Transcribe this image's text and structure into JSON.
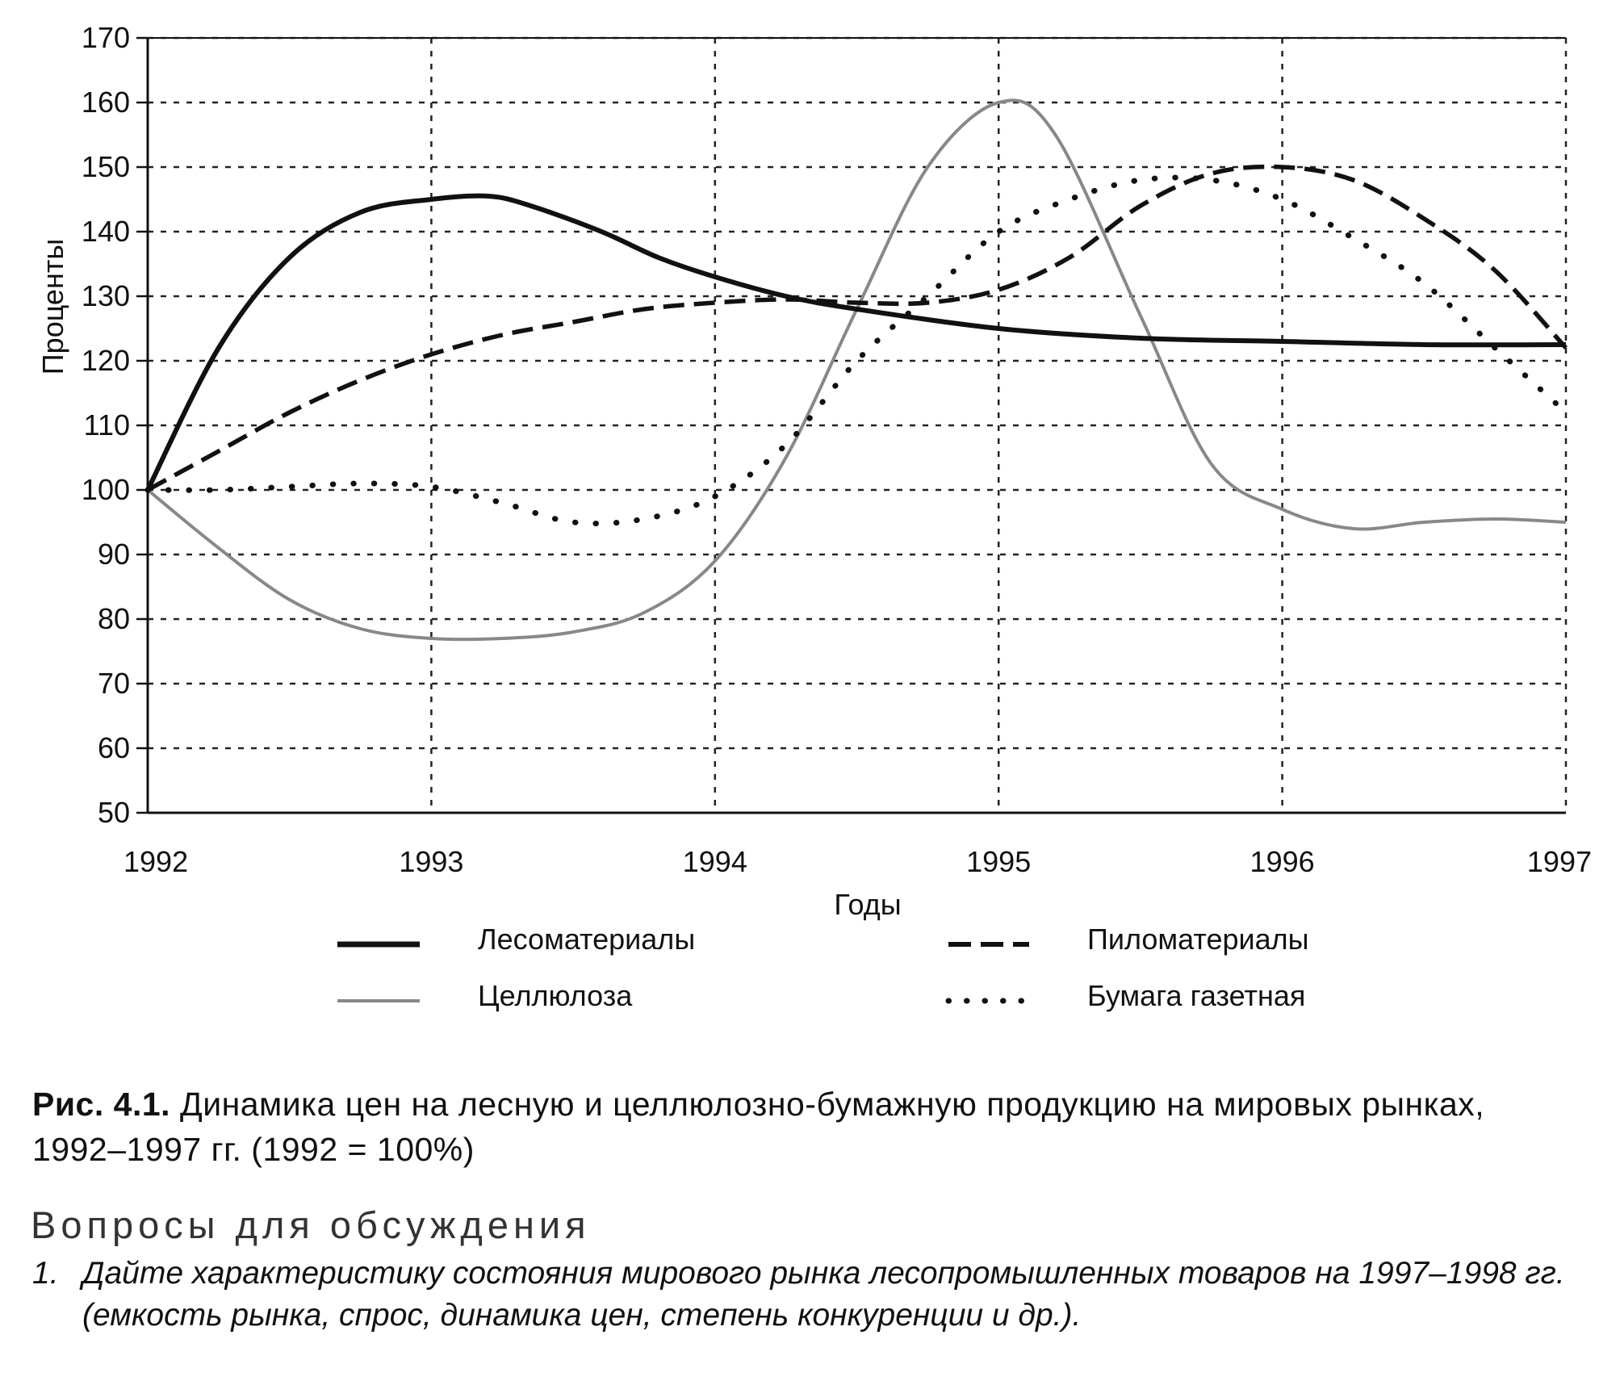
{
  "chart_data": {
    "type": "line",
    "xlabel": "Годы",
    "ylabel": "Проценты",
    "x_ticks": [
      "1992",
      "1993",
      "1994",
      "1995",
      "1996",
      "1997"
    ],
    "y_ticks": [
      "50",
      "60",
      "70",
      "80",
      "90",
      "100",
      "110",
      "120",
      "130",
      "140",
      "150",
      "160",
      "170"
    ],
    "xlim": [
      1992,
      1997
    ],
    "ylim": [
      50,
      170
    ],
    "grid": true,
    "legend_position": "bottom",
    "series": [
      {
        "name": "Лесоматериалы",
        "style": "solid-thick",
        "color": "#111111",
        "x": [
          1992,
          1992.25,
          1992.5,
          1992.75,
          1993,
          1993.2,
          1993.35,
          1993.6,
          1993.8,
          1994,
          1994.25,
          1994.5,
          1995,
          1995.5,
          1996,
          1996.5,
          1997
        ],
        "y": [
          100,
          122,
          136,
          143,
          145,
          145.5,
          144,
          140,
          136,
          133,
          130,
          128,
          125,
          123.5,
          123,
          122.5,
          122.5
        ]
      },
      {
        "name": "Пиломатериалы",
        "style": "dashed",
        "color": "#111111",
        "x": [
          1992,
          1992.25,
          1992.5,
          1992.75,
          1993,
          1993.25,
          1993.5,
          1993.75,
          1994,
          1994.25,
          1994.5,
          1994.75,
          1995,
          1995.25,
          1995.5,
          1995.75,
          1996,
          1996.25,
          1996.5,
          1996.75,
          1997
        ],
        "y": [
          100,
          106,
          112,
          117,
          121,
          124,
          126,
          128,
          129,
          129.5,
          129,
          129,
          131,
          136,
          144,
          149,
          150,
          148,
          142,
          134,
          122
        ]
      },
      {
        "name": "Целлюлоза",
        "style": "solid-grey",
        "color": "#888888",
        "x": [
          1992,
          1992.25,
          1992.5,
          1992.75,
          1993,
          1993.25,
          1993.5,
          1993.75,
          1994,
          1994.25,
          1994.5,
          1994.75,
          1995,
          1995.2,
          1995.5,
          1995.75,
          1996,
          1996.25,
          1996.5,
          1996.75,
          1997
        ],
        "y": [
          100,
          91,
          83,
          78.5,
          77,
          77,
          78,
          81,
          89,
          105,
          128,
          150,
          160,
          155,
          127,
          104,
          97,
          94,
          95,
          95.5,
          95
        ]
      },
      {
        "name": "Бумага газетная",
        "style": "dotted",
        "color": "#111111",
        "x": [
          1992,
          1992.25,
          1992.5,
          1992.75,
          1993,
          1993.25,
          1993.5,
          1993.75,
          1994,
          1994.25,
          1994.5,
          1994.75,
          1995,
          1995.25,
          1995.5,
          1995.75,
          1996,
          1996.25,
          1996.5,
          1996.75,
          1997
        ],
        "y": [
          100,
          100,
          100.5,
          101,
          100.5,
          98,
          95,
          95.5,
          99,
          107,
          120,
          130,
          140,
          145,
          148,
          148,
          145,
          139,
          132,
          122,
          112
        ]
      }
    ]
  },
  "caption": {
    "lead": "Рис. 4.1.",
    "text": "Динамика цен на лесную и целлюлозно-бумажную продукцию на мировых рынках, 1992–1997 гг. (1992 = 100%)"
  },
  "questions_heading": "Вопросы для обсуждения",
  "question_1": {
    "number": "1.",
    "text": "Дайте характеристику состояния мирового рынка лесопромышленных товаров на 1997–1998 гг. (емкость рынка, спрос, динамика цен, степень конкуренции и др.)."
  }
}
